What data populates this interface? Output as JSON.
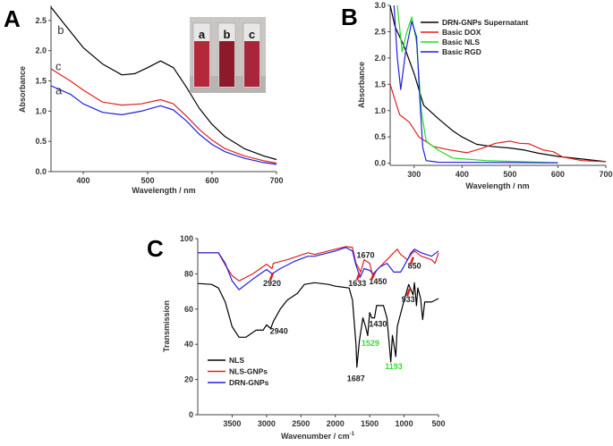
{
  "chart_data": [
    {
      "panel": "A",
      "type": "line",
      "xlabel": "Wavelength / nm",
      "ylabel": "Absorbance",
      "xlim": [
        350,
        700
      ],
      "ylim": [
        0,
        2.75
      ],
      "xticks": [
        400,
        500,
        600,
        700
      ],
      "yticks": [
        0.0,
        0.5,
        1.0,
        1.5,
        2.0,
        2.5
      ],
      "grid": false,
      "series": [
        {
          "name": "b",
          "color": "#000000",
          "x": [
            350,
            370,
            400,
            430,
            460,
            480,
            500,
            520,
            540,
            560,
            580,
            600,
            620,
            650,
            680,
            700
          ],
          "y": [
            2.72,
            2.45,
            2.05,
            1.78,
            1.6,
            1.62,
            1.72,
            1.83,
            1.72,
            1.4,
            1.05,
            0.78,
            0.58,
            0.38,
            0.26,
            0.2
          ]
        },
        {
          "name": "c",
          "color": "#e02020",
          "x": [
            350,
            380,
            400,
            430,
            460,
            490,
            520,
            540,
            560,
            580,
            600,
            620,
            650,
            680,
            700
          ],
          "y": [
            1.7,
            1.5,
            1.35,
            1.15,
            1.1,
            1.12,
            1.19,
            1.12,
            0.92,
            0.7,
            0.52,
            0.38,
            0.26,
            0.18,
            0.14
          ]
        },
        {
          "name": "a",
          "color": "#2020e0",
          "x": [
            350,
            380,
            400,
            430,
            460,
            490,
            520,
            540,
            560,
            580,
            600,
            620,
            650,
            680,
            700
          ],
          "y": [
            1.42,
            1.28,
            1.12,
            0.98,
            0.94,
            1.0,
            1.09,
            1.02,
            0.84,
            0.62,
            0.45,
            0.33,
            0.22,
            0.15,
            0.12
          ]
        }
      ],
      "curve_labels": [
        {
          "text": "b",
          "x": 360,
          "y": 2.28
        },
        {
          "text": "c",
          "x": 357,
          "y": 1.68
        },
        {
          "text": "a",
          "x": 357,
          "y": 1.28
        }
      ],
      "inset": {
        "cuvette_labels": [
          "a",
          "b",
          "c"
        ],
        "liquid_colors": [
          "#b4283c",
          "#8c1a2a",
          "#a8253a"
        ]
      }
    },
    {
      "panel": "B",
      "type": "line",
      "xlabel": "Wavelength / nm",
      "ylabel": "Absorbance",
      "xlim": [
        250,
        700
      ],
      "ylim": [
        -0.04,
        3.0
      ],
      "xticks": [
        300,
        400,
        500,
        600,
        700
      ],
      "yticks": [
        0.0,
        0.5,
        1.0,
        1.5,
        2.0,
        2.5,
        3.0
      ],
      "grid": false,
      "legend": "top-right",
      "series": [
        {
          "name": "DRN-GNPs Supernatant",
          "color": "#000000",
          "x": [
            250,
            260,
            280,
            300,
            320,
            350,
            380,
            400,
            430,
            460,
            500,
            530,
            560,
            600,
            650,
            700
          ],
          "y": [
            3.0,
            2.6,
            2.2,
            1.7,
            1.1,
            0.85,
            0.62,
            0.5,
            0.36,
            0.32,
            0.29,
            0.25,
            0.19,
            0.13,
            0.08,
            0.03
          ]
        },
        {
          "name": "Basic DOX",
          "color": "#e02020",
          "x": [
            250,
            260,
            270,
            290,
            310,
            340,
            370,
            410,
            440,
            470,
            500,
            520,
            540,
            570,
            590,
            610,
            650,
            700
          ],
          "y": [
            1.5,
            1.2,
            0.92,
            0.78,
            0.5,
            0.32,
            0.26,
            0.2,
            0.28,
            0.38,
            0.42,
            0.38,
            0.37,
            0.25,
            0.22,
            0.12,
            0.05,
            0.03
          ]
        },
        {
          "name": "Basic NLS",
          "color": "#22dd22",
          "x": [
            265,
            275,
            285,
            295,
            305,
            315,
            325,
            350,
            380,
            450,
            600
          ],
          "y": [
            3.0,
            2.12,
            2.5,
            2.78,
            2.3,
            1.0,
            0.42,
            0.25,
            0.1,
            0.05,
            0.01
          ]
        },
        {
          "name": "Basic RGD",
          "color": "#2020e0",
          "x": [
            258,
            265,
            272,
            282,
            295,
            305,
            312,
            318,
            325,
            350,
            600
          ],
          "y": [
            3.0,
            2.0,
            1.4,
            2.1,
            2.7,
            2.4,
            1.2,
            0.3,
            0.05,
            0.02,
            0.01
          ]
        }
      ]
    },
    {
      "panel": "C",
      "type": "line",
      "xlabel": "Wavenumber / cm",
      "xlabel_sup": "-1",
      "ylabel": "Transmission",
      "xlim": [
        4000,
        500
      ],
      "ylim": [
        0,
        100
      ],
      "xticks": [
        3500,
        3000,
        2500,
        2000,
        1500,
        1000,
        500
      ],
      "yticks": [
        0,
        20,
        40,
        60,
        80,
        100
      ],
      "grid": false,
      "legend": "bottom-left",
      "series": [
        {
          "name": "NLS",
          "color": "#000000",
          "x": [
            4000,
            3800,
            3700,
            3600,
            3500,
            3400,
            3300,
            3150,
            3050,
            3000,
            2940,
            2900,
            2800,
            2700,
            2550,
            2450,
            2300,
            2100,
            2000,
            1800,
            1750,
            1700,
            1687,
            1650,
            1600,
            1560,
            1529,
            1500,
            1470,
            1430,
            1400,
            1300,
            1250,
            1193,
            1170,
            1140,
            1120,
            1100,
            1000,
            933,
            870,
            850,
            820,
            800,
            760,
            730,
            700,
            600,
            500
          ],
          "y": [
            74.5,
            74,
            72,
            64,
            50,
            44,
            44,
            48,
            48,
            51,
            49,
            53,
            60,
            65,
            69,
            74,
            75,
            74,
            73,
            72,
            65,
            40,
            27,
            42,
            55,
            50,
            45,
            58,
            55,
            55,
            62,
            62,
            55,
            30,
            45,
            38,
            33,
            50,
            65,
            74,
            68,
            75,
            62,
            72,
            66,
            54,
            64,
            64,
            66
          ]
        },
        {
          "name": "NLS-GNPs",
          "color": "#e02020",
          "x": [
            4000,
            3700,
            3600,
            3500,
            3400,
            3200,
            3000,
            2920,
            2900,
            2700,
            2400,
            2300,
            2000,
            1850,
            1750,
            1700,
            1670,
            1633,
            1580,
            1500,
            1450,
            1400,
            1300,
            1200,
            1100,
            1050,
            950,
            900,
            850,
            750,
            600,
            550,
            500
          ],
          "y": [
            92,
            92,
            85,
            79,
            76,
            80,
            85.5,
            83,
            86,
            88,
            92,
            91,
            94,
            95.5,
            95,
            86,
            84,
            81,
            88,
            86,
            78,
            82,
            86,
            90,
            94,
            91,
            88,
            91,
            93,
            90,
            88,
            86,
            92
          ]
        },
        {
          "name": "DRN-GNPs",
          "color": "#2020e0",
          "x": [
            4000,
            3700,
            3600,
            3500,
            3400,
            3200,
            3000,
            2920,
            2800,
            2600,
            2400,
            2300,
            2000,
            1850,
            1750,
            1700,
            1640,
            1580,
            1500,
            1450,
            1350,
            1250,
            1150,
            1050,
            950,
            900,
            850,
            750,
            600,
            500
          ],
          "y": [
            92,
            92,
            86,
            76,
            71,
            77,
            82.5,
            80,
            83,
            87,
            90,
            90,
            93,
            95,
            93,
            85,
            78,
            83,
            82,
            80,
            84,
            86,
            81,
            81,
            88,
            92,
            94,
            92,
            90,
            93
          ]
        }
      ],
      "annotations": [
        {
          "text": "2920",
          "x": 2920,
          "y": 73,
          "color": "#222222"
        },
        {
          "text": "1670",
          "x": 1560,
          "y": 89,
          "color": "#222222"
        },
        {
          "text": "1633",
          "x": 1680,
          "y": 73,
          "color": "#222222"
        },
        {
          "text": "1450",
          "x": 1380,
          "y": 74,
          "color": "#222222"
        },
        {
          "text": "850",
          "x": 850,
          "y": 83,
          "color": "#222222"
        },
        {
          "text": "933",
          "x": 940,
          "y": 64,
          "color": "#222222"
        },
        {
          "text": "2940",
          "x": 2820,
          "y": 46,
          "color": "#222222"
        },
        {
          "text": "1430",
          "x": 1380,
          "y": 50,
          "color": "#222222"
        },
        {
          "text": "1529",
          "x": 1490,
          "y": 39,
          "color": "#33dd33"
        },
        {
          "text": "1687",
          "x": 1700,
          "y": 19,
          "color": "#222222"
        },
        {
          "text": "1193",
          "x": 1150,
          "y": 26,
          "color": "#33dd33"
        }
      ],
      "arrow_color": "#e02020"
    }
  ]
}
